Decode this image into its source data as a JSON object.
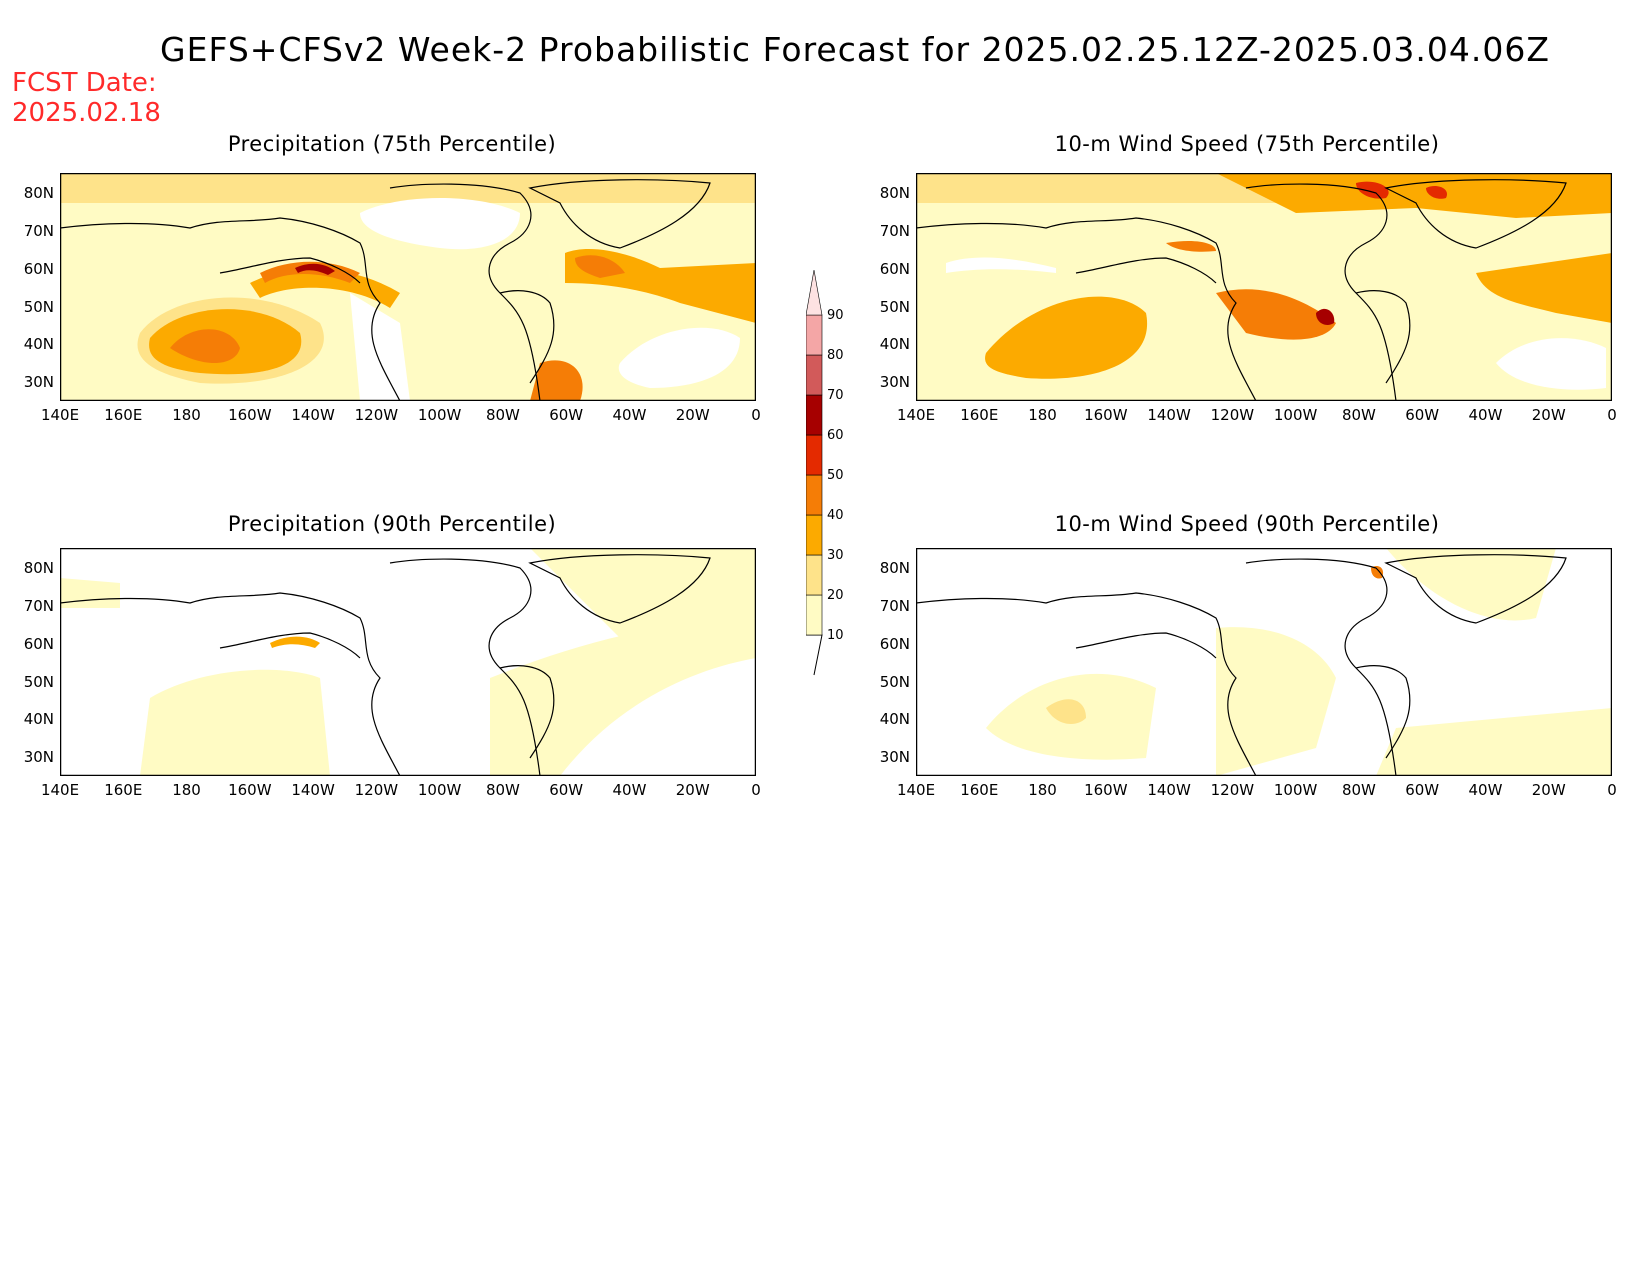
{
  "header": {
    "title": "GEFS+CFSv2 Week-2 Probabilistic Forecast for 2025.02.25.12Z-2025.03.04.06Z",
    "fcst_label": "FCST Date:",
    "fcst_date": "2025.02.18"
  },
  "panels": [
    {
      "title": "Precipitation (75th Percentile)"
    },
    {
      "title": "10-m Wind Speed (75th Percentile)"
    },
    {
      "title": "Precipitation (90th Percentile)"
    },
    {
      "title": "10-m Wind Speed (90th Percentile)"
    }
  ],
  "axes": {
    "lat_labels": [
      "80N",
      "70N",
      "60N",
      "50N",
      "40N",
      "30N"
    ],
    "lon_labels": [
      "140E",
      "160E",
      "180",
      "160W",
      "140W",
      "120W",
      "100W",
      "80W",
      "60W",
      "40W",
      "20W",
      "0"
    ]
  },
  "colorbar": {
    "levels": [
      "10",
      "20",
      "30",
      "40",
      "50",
      "60",
      "70",
      "80",
      "90"
    ],
    "colors": [
      "#fffbc4",
      "#fee38a",
      "#fcaa00",
      "#f57d06",
      "#e42a00",
      "#a60000",
      "#d25a5a",
      "#f4a6a6",
      "#fde2e2"
    ]
  }
}
